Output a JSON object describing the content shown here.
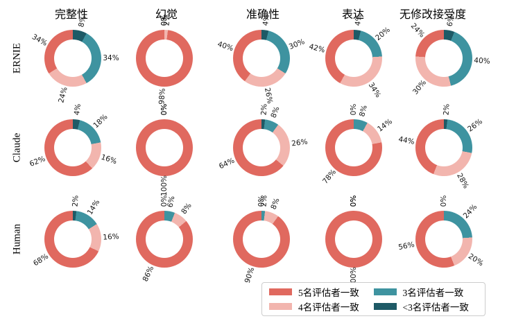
{
  "legend": {
    "items": [
      {
        "key": "five",
        "label": "5名评估者一致",
        "color": "#e0695f"
      },
      {
        "key": "four",
        "label": "4名评估者一致",
        "color": "#f2b5ae"
      },
      {
        "key": "three",
        "label": "3名评估者一致",
        "color": "#3e93a0"
      },
      {
        "key": "lt3",
        "label": "<3名评估者一致",
        "color": "#1e5a66"
      }
    ]
  },
  "chart_data": {
    "type": "donut-grid",
    "unit": "%",
    "legend_position": "bottom-right",
    "categories": [
      "5名评估者一致",
      "4名评估者一致",
      "3名评估者一致",
      "<3名评估者一致"
    ],
    "colors": {
      "five": "#e0695f",
      "four": "#f2b5ae",
      "three": "#3e93a0",
      "lt3": "#1e5a66"
    },
    "clockwise_from_top": [
      "lt3",
      "three",
      "four",
      "five"
    ],
    "columns": [
      "完整性",
      "幻觉",
      "准确性",
      "表达",
      "无修改接受度"
    ],
    "rows": [
      {
        "label": "ERNIE",
        "values": [
          {
            "five": 34,
            "four": 24,
            "three": 34,
            "lt3": 8
          },
          {
            "five": 98,
            "four": 2,
            "three": 0,
            "lt3": 0
          },
          {
            "five": 40,
            "four": 26,
            "three": 30,
            "lt3": 4
          },
          {
            "five": 42,
            "four": 34,
            "three": 20,
            "lt3": 4
          },
          {
            "five": 24,
            "four": 30,
            "three": 40,
            "lt3": 6
          }
        ]
      },
      {
        "label": "Claude",
        "values": [
          {
            "five": 62,
            "four": 16,
            "three": 18,
            "lt3": 4
          },
          {
            "five": 100,
            "four": 0,
            "three": 0,
            "lt3": 0
          },
          {
            "five": 64,
            "four": 26,
            "three": 8,
            "lt3": 2
          },
          {
            "five": 78,
            "four": 14,
            "three": 8,
            "lt3": 0
          },
          {
            "five": 44,
            "four": 28,
            "three": 26,
            "lt3": 2
          }
        ]
      },
      {
        "label": "Human",
        "values": [
          {
            "five": 68,
            "four": 16,
            "three": 14,
            "lt3": 2
          },
          {
            "five": 86,
            "four": 8,
            "three": 6,
            "lt3": 0
          },
          {
            "five": 90,
            "four": 8,
            "three": 2,
            "lt3": 0
          },
          {
            "five": 100,
            "four": 0,
            "three": 0,
            "lt3": 0
          },
          {
            "five": 56,
            "four": 20,
            "three": 24,
            "lt3": 0
          }
        ]
      }
    ]
  }
}
